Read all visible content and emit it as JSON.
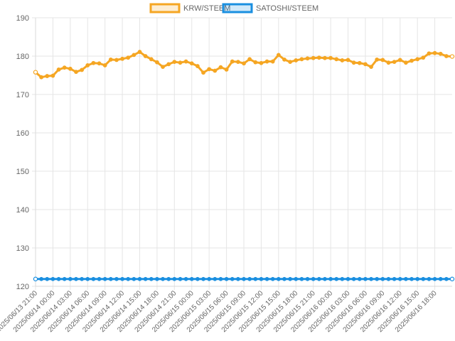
{
  "chart_data": {
    "type": "line",
    "title": "",
    "xlabel": "",
    "ylabel": "",
    "ylim": [
      120,
      190
    ],
    "yticks": [
      120,
      130,
      140,
      150,
      160,
      170,
      180,
      190
    ],
    "grid": true,
    "legend_position": "top-center",
    "x": [
      "2025/06/13 21:00",
      "2025/06/13 22:00",
      "2025/06/13 23:00",
      "2025/06/14 00:00",
      "2025/06/14 01:00",
      "2025/06/14 02:00",
      "2025/06/14 03:00",
      "2025/06/14 04:00",
      "2025/06/14 05:00",
      "2025/06/14 06:00",
      "2025/06/14 07:00",
      "2025/06/14 08:00",
      "2025/06/14 09:00",
      "2025/06/14 10:00",
      "2025/06/14 11:00",
      "2025/06/14 12:00",
      "2025/06/14 13:00",
      "2025/06/14 14:00",
      "2025/06/14 15:00",
      "2025/06/14 16:00",
      "2025/06/14 17:00",
      "2025/06/14 18:00",
      "2025/06/14 19:00",
      "2025/06/14 20:00",
      "2025/06/14 21:00",
      "2025/06/14 22:00",
      "2025/06/14 23:00",
      "2025/06/15 00:00",
      "2025/06/15 01:00",
      "2025/06/15 02:00",
      "2025/06/15 03:00",
      "2025/06/15 04:00",
      "2025/06/15 05:00",
      "2025/06/15 06:00",
      "2025/06/15 07:00",
      "2025/06/15 08:00",
      "2025/06/15 09:00",
      "2025/06/15 10:00",
      "2025/06/15 11:00",
      "2025/06/15 12:00",
      "2025/06/15 13:00",
      "2025/06/15 14:00",
      "2025/06/15 15:00",
      "2025/06/15 16:00",
      "2025/06/15 17:00",
      "2025/06/15 18:00",
      "2025/06/15 19:00",
      "2025/06/15 20:00",
      "2025/06/15 21:00",
      "2025/06/15 22:00",
      "2025/06/15 23:00",
      "2025/06/16 00:00",
      "2025/06/16 01:00",
      "2025/06/16 02:00",
      "2025/06/16 03:00",
      "2025/06/16 04:00",
      "2025/06/16 05:00",
      "2025/06/16 06:00",
      "2025/06/16 07:00",
      "2025/06/16 08:00",
      "2025/06/16 09:00",
      "2025/06/16 10:00",
      "2025/06/16 11:00",
      "2025/06/16 12:00",
      "2025/06/16 13:00",
      "2025/06/16 14:00",
      "2025/06/16 15:00",
      "2025/06/16 16:00",
      "2025/06/16 17:00",
      "2025/06/16 18:00",
      "2025/06/16 19:00",
      "2025/06/16 20:00",
      "2025/06/16 21:00"
    ],
    "x_tick_labels": [
      "2025/06/13 21:00",
      "2025/06/14 00:00",
      "2025/06/14 03:00",
      "2025/06/14 06:00",
      "2025/06/14 09:00",
      "2025/06/14 12:00",
      "2025/06/14 15:00",
      "2025/06/14 18:00",
      "2025/06/14 21:00",
      "2025/06/15 00:00",
      "2025/06/15 03:00",
      "2025/06/15 06:00",
      "2025/06/15 09:00",
      "2025/06/15 12:00",
      "2025/06/15 15:00",
      "2025/06/15 18:00",
      "2025/06/15 21:00",
      "2025/06/16 00:00",
      "2025/06/16 03:00",
      "2025/06/16 06:00",
      "2025/06/16 09:00",
      "2025/06/16 12:00",
      "2025/06/16 15:00",
      "2025/06/16 18:00"
    ],
    "series": [
      {
        "name": "KRW/STEEM",
        "color": "#f5a623",
        "values": [
          175.8,
          174.5,
          174.8,
          174.9,
          176.5,
          177.0,
          176.7,
          175.9,
          176.4,
          177.6,
          178.2,
          178.1,
          177.6,
          179.1,
          179.0,
          179.3,
          179.6,
          180.3,
          181.1,
          180.0,
          179.2,
          178.4,
          177.2,
          177.9,
          178.5,
          178.3,
          178.6,
          178.1,
          177.4,
          175.7,
          176.6,
          176.2,
          177.1,
          176.5,
          178.6,
          178.5,
          178.1,
          179.2,
          178.4,
          178.2,
          178.6,
          178.6,
          180.3,
          179.1,
          178.5,
          178.9,
          179.2,
          179.4,
          179.5,
          179.6,
          179.5,
          179.5,
          179.2,
          178.9,
          179.0,
          178.3,
          178.2,
          177.9,
          177.2,
          179.1,
          179.0,
          178.3,
          178.5,
          179.0,
          178.3,
          178.8,
          179.2,
          179.6,
          180.7,
          180.8,
          180.6,
          180.0,
          179.9
        ]
      },
      {
        "name": "SATOSHI/STEEM",
        "color": "#1a8fe0",
        "values": [
          121.9,
          121.9,
          121.9,
          121.9,
          121.9,
          121.9,
          121.9,
          121.9,
          121.9,
          121.9,
          121.9,
          121.9,
          121.9,
          121.9,
          121.9,
          121.9,
          121.9,
          121.9,
          121.9,
          121.9,
          121.9,
          121.9,
          121.9,
          121.9,
          121.9,
          121.9,
          121.9,
          121.9,
          121.9,
          121.9,
          121.9,
          121.9,
          121.9,
          121.9,
          121.9,
          121.9,
          121.9,
          121.9,
          121.9,
          121.9,
          121.9,
          121.9,
          121.9,
          121.9,
          121.9,
          121.9,
          121.9,
          121.9,
          121.9,
          121.9,
          121.9,
          121.9,
          121.9,
          121.9,
          121.9,
          121.9,
          121.9,
          121.9,
          121.9,
          121.9,
          121.9,
          121.9,
          121.9,
          121.9,
          121.9,
          121.9,
          121.9,
          121.9,
          121.9,
          121.9,
          121.9,
          121.9,
          121.9
        ]
      }
    ]
  }
}
